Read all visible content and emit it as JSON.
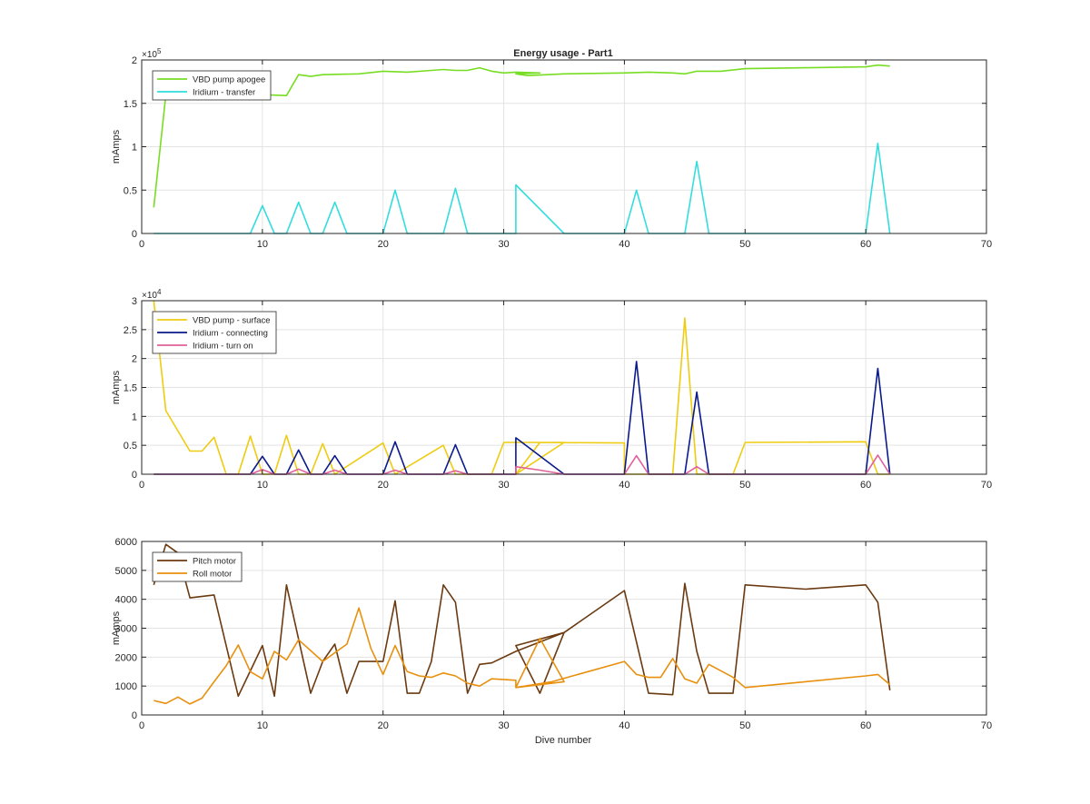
{
  "figure": {
    "title": "Energy usage - Part1",
    "xlabel": "Dive number"
  },
  "chart_data": [
    {
      "type": "line",
      "title": "Energy usage - Part1",
      "ylabel": "mAmps",
      "xlabel": "",
      "xlim": [
        0,
        70
      ],
      "ylim": [
        0,
        200000
      ],
      "yexponent": "5",
      "xticks": [
        "0",
        "10",
        "20",
        "30",
        "40",
        "50",
        "60",
        "70"
      ],
      "yticks": [
        "0",
        "0.5",
        "1",
        "1.5",
        "2"
      ],
      "grid": true,
      "legend_position": "top-left",
      "series": [
        {
          "name": "VBD pump apogee",
          "color": "#77dd22",
          "points": [
            [
              1,
              30000
            ],
            [
              2,
              160000
            ],
            [
              5,
              165000
            ],
            [
              8,
              160000
            ],
            [
              10,
              160000
            ],
            [
              12,
              159000
            ],
            [
              13,
              183000
            ],
            [
              14,
              181000
            ],
            [
              15,
              183000
            ],
            [
              18,
              184000
            ],
            [
              20,
              187000
            ],
            [
              22,
              186000
            ],
            [
              24,
              188000
            ],
            [
              25,
              189000
            ],
            [
              26,
              188000
            ],
            [
              27,
              188000
            ],
            [
              28,
              191000
            ],
            [
              29,
              187000
            ],
            [
              30,
              185000
            ],
            [
              31,
              186000
            ],
            [
              33,
              185000
            ],
            [
              31,
              184000
            ],
            [
              32,
              182000
            ],
            [
              35,
              184000
            ],
            [
              40,
              185000
            ],
            [
              42,
              186000
            ],
            [
              44,
              185000
            ],
            [
              45,
              184000
            ],
            [
              46,
              187000
            ],
            [
              48,
              187000
            ],
            [
              50,
              190000
            ],
            [
              55,
              191000
            ],
            [
              60,
              192000
            ],
            [
              61,
              194000
            ],
            [
              62,
              193000
            ]
          ]
        },
        {
          "name": "Iridium - transfer",
          "color": "#33dddd",
          "points": [
            [
              1,
              0
            ],
            [
              9,
              0
            ],
            [
              10,
              32000
            ],
            [
              11,
              0
            ],
            [
              12,
              0
            ],
            [
              13,
              36000
            ],
            [
              14,
              0
            ],
            [
              15,
              0
            ],
            [
              16,
              36000
            ],
            [
              17,
              0
            ],
            [
              20,
              0
            ],
            [
              21,
              50000
            ],
            [
              22,
              0
            ],
            [
              25,
              0
            ],
            [
              26,
              52000
            ],
            [
              27,
              0
            ],
            [
              31,
              0
            ],
            [
              31,
              56000
            ],
            [
              35,
              0
            ],
            [
              40,
              0
            ],
            [
              41,
              50000
            ],
            [
              42,
              0
            ],
            [
              45,
              0
            ],
            [
              46,
              83000
            ],
            [
              47,
              0
            ],
            [
              60,
              0
            ],
            [
              61,
              104000
            ],
            [
              62,
              0
            ]
          ]
        }
      ]
    },
    {
      "type": "line",
      "title": "",
      "ylabel": "mAmps",
      "xlabel": "",
      "xlim": [
        0,
        70
      ],
      "ylim": [
        0,
        30000
      ],
      "yexponent": "4",
      "xticks": [
        "0",
        "10",
        "20",
        "30",
        "40",
        "50",
        "60",
        "70"
      ],
      "yticks": [
        "0",
        "0.5",
        "1",
        "1.5",
        "2",
        "2.5",
        "3"
      ],
      "grid": true,
      "legend_position": "top-left",
      "series": [
        {
          "name": "VBD pump - surface",
          "color": "#eecc11",
          "points": [
            [
              1,
              30000
            ],
            [
              2,
              11000
            ],
            [
              4,
              4000
            ],
            [
              5,
              4000
            ],
            [
              6,
              6400
            ],
            [
              7,
              0
            ],
            [
              8,
              0
            ],
            [
              9,
              6600
            ],
            [
              10,
              0
            ],
            [
              11,
              0
            ],
            [
              12,
              6700
            ],
            [
              13,
              0
            ],
            [
              14,
              0
            ],
            [
              15,
              5300
            ],
            [
              16,
              0
            ],
            [
              20,
              5400
            ],
            [
              21,
              0
            ],
            [
              25,
              5000
            ],
            [
              26,
              0
            ],
            [
              29,
              0
            ],
            [
              30,
              5500
            ],
            [
              31,
              5500
            ],
            [
              35,
              5500
            ],
            [
              31,
              0
            ],
            [
              33,
              5500
            ],
            [
              40,
              5400
            ],
            [
              40,
              0
            ],
            [
              44,
              0
            ],
            [
              45,
              27000
            ],
            [
              46,
              0
            ],
            [
              49,
              0
            ],
            [
              50,
              5500
            ],
            [
              60,
              5600
            ],
            [
              61,
              0
            ],
            [
              62,
              0
            ]
          ]
        },
        {
          "name": "Iridium - connecting",
          "color": "#0a1a8c",
          "points": [
            [
              1,
              0
            ],
            [
              9,
              0
            ],
            [
              10,
              3100
            ],
            [
              11,
              0
            ],
            [
              12,
              0
            ],
            [
              13,
              4200
            ],
            [
              14,
              0
            ],
            [
              15,
              0
            ],
            [
              16,
              3200
            ],
            [
              17,
              0
            ],
            [
              20,
              0
            ],
            [
              21,
              5600
            ],
            [
              22,
              0
            ],
            [
              25,
              0
            ],
            [
              26,
              5100
            ],
            [
              27,
              0
            ],
            [
              31,
              0
            ],
            [
              31,
              6300
            ],
            [
              35,
              0
            ],
            [
              40,
              0
            ],
            [
              41,
              19500
            ],
            [
              42,
              0
            ],
            [
              45,
              0
            ],
            [
              46,
              14200
            ],
            [
              47,
              0
            ],
            [
              60,
              0
            ],
            [
              61,
              18300
            ],
            [
              62,
              0
            ]
          ]
        },
        {
          "name": "Iridium - turn on",
          "color": "#e0609a",
          "points": [
            [
              1,
              0
            ],
            [
              9,
              0
            ],
            [
              10,
              800
            ],
            [
              11,
              0
            ],
            [
              12,
              0
            ],
            [
              13,
              900
            ],
            [
              14,
              0
            ],
            [
              15,
              0
            ],
            [
              16,
              700
            ],
            [
              17,
              0
            ],
            [
              20,
              0
            ],
            [
              21,
              700
            ],
            [
              22,
              0
            ],
            [
              25,
              0
            ],
            [
              26,
              600
            ],
            [
              27,
              0
            ],
            [
              31,
              0
            ],
            [
              31,
              1300
            ],
            [
              33,
              700
            ],
            [
              35,
              0
            ],
            [
              40,
              0
            ],
            [
              41,
              3200
            ],
            [
              42,
              0
            ],
            [
              45,
              0
            ],
            [
              46,
              1300
            ],
            [
              47,
              0
            ],
            [
              60,
              0
            ],
            [
              61,
              3300
            ],
            [
              62,
              0
            ]
          ]
        }
      ]
    },
    {
      "type": "line",
      "title": "",
      "ylabel": "mAmps",
      "xlabel": "Dive number",
      "xlim": [
        0,
        70
      ],
      "ylim": [
        0,
        6000
      ],
      "yexponent": "",
      "xticks": [
        "0",
        "10",
        "20",
        "30",
        "40",
        "50",
        "60",
        "70"
      ],
      "yticks": [
        "0",
        "1000",
        "2000",
        "3000",
        "4000",
        "5000",
        "6000"
      ],
      "grid": true,
      "legend_position": "top-left",
      "series": [
        {
          "name": "Pitch motor",
          "color": "#6b3a10",
          "points": [
            [
              1,
              4500
            ],
            [
              2,
              5900
            ],
            [
              3,
              5600
            ],
            [
              4,
              4050
            ],
            [
              6,
              4150
            ],
            [
              8,
              650
            ],
            [
              10,
              2400
            ],
            [
              11,
              650
            ],
            [
              12,
              4500
            ],
            [
              14,
              750
            ],
            [
              15,
              1850
            ],
            [
              16,
              2450
            ],
            [
              17,
              750
            ],
            [
              18,
              1850
            ],
            [
              20,
              1850
            ],
            [
              21,
              3950
            ],
            [
              22,
              750
            ],
            [
              23,
              750
            ],
            [
              24,
              1850
            ],
            [
              25,
              4500
            ],
            [
              26,
              3900
            ],
            [
              27,
              750
            ],
            [
              28,
              1750
            ],
            [
              29,
              1800
            ],
            [
              31,
              2200
            ],
            [
              35,
              2850
            ],
            [
              31,
              2400
            ],
            [
              33,
              750
            ],
            [
              35,
              2850
            ],
            [
              40,
              4300
            ],
            [
              42,
              750
            ],
            [
              44,
              700
            ],
            [
              45,
              4550
            ],
            [
              46,
              2200
            ],
            [
              47,
              750
            ],
            [
              49,
              750
            ],
            [
              50,
              4500
            ],
            [
              55,
              4350
            ],
            [
              60,
              4500
            ],
            [
              61,
              3900
            ],
            [
              62,
              850
            ]
          ]
        },
        {
          "name": "Roll motor",
          "color": "#e8900e",
          "points": [
            [
              1,
              500
            ],
            [
              2,
              400
            ],
            [
              3,
              620
            ],
            [
              4,
              380
            ],
            [
              5,
              580
            ],
            [
              6,
              1150
            ],
            [
              7,
              1700
            ],
            [
              8,
              2420
            ],
            [
              9,
              1500
            ],
            [
              10,
              1250
            ],
            [
              11,
              2200
            ],
            [
              12,
              1900
            ],
            [
              13,
              2600
            ],
            [
              15,
              1850
            ],
            [
              17,
              2450
            ],
            [
              18,
              3700
            ],
            [
              19,
              2300
            ],
            [
              20,
              1400
            ],
            [
              21,
              2400
            ],
            [
              22,
              1500
            ],
            [
              23,
              1350
            ],
            [
              24,
              1300
            ],
            [
              25,
              1450
            ],
            [
              26,
              1350
            ],
            [
              27,
              1100
            ],
            [
              28,
              1000
            ],
            [
              29,
              1250
            ],
            [
              31,
              1200
            ],
            [
              31,
              950
            ],
            [
              33,
              2650
            ],
            [
              35,
              1150
            ],
            [
              31,
              950
            ],
            [
              34,
              1150
            ],
            [
              40,
              1850
            ],
            [
              41,
              1400
            ],
            [
              42,
              1300
            ],
            [
              43,
              1300
            ],
            [
              44,
              1950
            ],
            [
              45,
              1250
            ],
            [
              46,
              1100
            ],
            [
              47,
              1750
            ],
            [
              49,
              1300
            ],
            [
              50,
              950
            ],
            [
              55,
              1150
            ],
            [
              60,
              1350
            ],
            [
              61,
              1400
            ],
            [
              62,
              1050
            ]
          ]
        }
      ]
    }
  ]
}
